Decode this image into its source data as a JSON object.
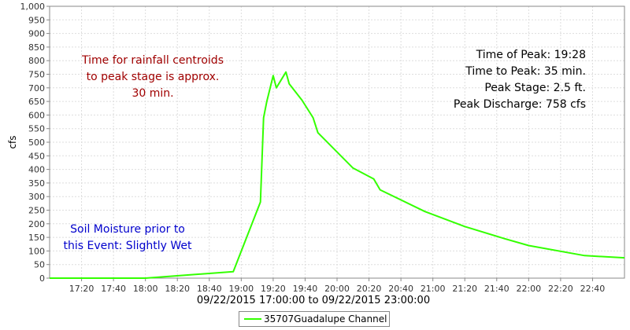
{
  "chart_data": {
    "type": "line",
    "xlabel": "09/22/2015 17:00:00 to 09/22/2015 23:00:00",
    "ylabel": "cfs",
    "ylim": [
      0,
      1000
    ],
    "xlim": [
      "17:00",
      "23:00"
    ],
    "yticks": [
      "0",
      "50",
      "100",
      "150",
      "200",
      "250",
      "300",
      "350",
      "400",
      "450",
      "500",
      "550",
      "600",
      "650",
      "700",
      "750",
      "800",
      "850",
      "900",
      "950",
      "1,000"
    ],
    "xticks": [
      "17:20",
      "17:40",
      "18:00",
      "18:20",
      "18:40",
      "19:00",
      "19:20",
      "19:40",
      "20:00",
      "20:20",
      "20:40",
      "21:00",
      "21:20",
      "21:40",
      "22:00",
      "22:20",
      "22:40"
    ],
    "grid": true,
    "legend_position": "bottom-center",
    "series": [
      {
        "name": "35707Guadalupe Channel",
        "color": "#33ff00",
        "x": [
          "17:00",
          "18:00",
          "18:55",
          "19:12",
          "19:14",
          "19:16",
          "19:20",
          "19:22",
          "19:28",
          "19:30",
          "19:38",
          "19:45",
          "19:48",
          "20:10",
          "20:23",
          "20:27",
          "20:55",
          "21:20",
          "21:45",
          "22:00",
          "22:35",
          "23:00"
        ],
        "y": [
          0,
          0,
          24,
          280,
          590,
          650,
          745,
          700,
          758,
          715,
          655,
          590,
          535,
          405,
          365,
          325,
          245,
          190,
          145,
          120,
          83,
          75
        ]
      }
    ],
    "annotations": {
      "rainfall": [
        "Time for rainfall centroids",
        "to peak stage is approx.",
        "30 min."
      ],
      "soil": [
        "Soil Moisture prior to",
        "this Event: Slightly Wet"
      ],
      "peak": [
        "Time of Peak: 19:28",
        "Time to Peak: 35 min.",
        "Peak Stage: 2.5 ft.",
        "Peak Discharge: 758 cfs"
      ]
    }
  }
}
